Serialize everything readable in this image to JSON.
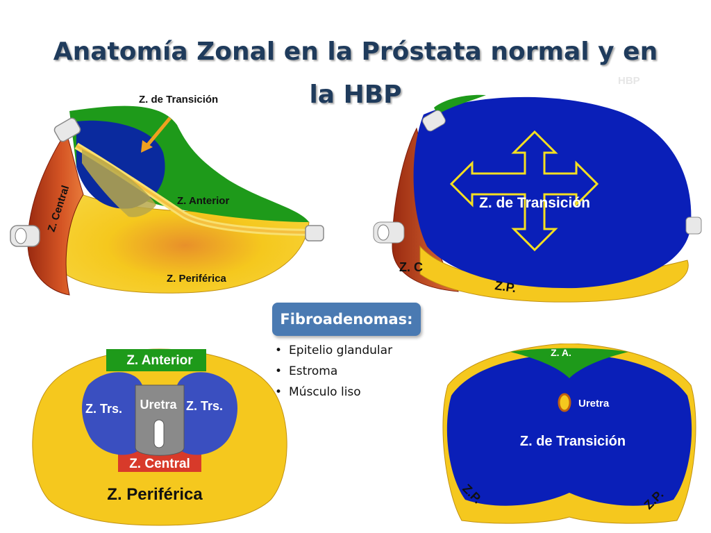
{
  "title": "Anatomía Zonal en la Próstata normal y en la HBP",
  "ghost_text": "HBP",
  "diagram_normal_sagittal": {
    "label_transition": "Z. de Transición",
    "label_anterior": "Z. Anterior",
    "label_central": "Z. Central",
    "label_peripheral": "Z. Periférica"
  },
  "diagram_bph_sagittal": {
    "label_transition": "Z. de Transición",
    "label_central": "Z. C",
    "label_peripheral": "Z.P."
  },
  "diagram_normal_axial": {
    "label_anterior": "Z. Anterior",
    "label_transition_left": "Z. Trs.",
    "label_transition_right": "Z. Trs.",
    "label_urethra": "Uretra",
    "label_central": "Z. Central",
    "label_peripheral": "Z. Periférica"
  },
  "diagram_bph_axial": {
    "label_anterior": "Z. A.",
    "label_urethra": "Uretra",
    "label_transition": "Z. de Transición",
    "label_peripheral_left": "Z.P.",
    "label_peripheral_right": "Z.P."
  },
  "callout": {
    "heading": "Fibroadenomas:",
    "items": [
      "Epitelio glandular",
      "Estroma",
      "Músculo liso"
    ]
  },
  "colors": {
    "title": "#1F3B5C",
    "transition_blue": "#0A1FB8",
    "anterior_green": "#1E9A1A",
    "peripheral_yellow": "#F5C81E",
    "central_red": "#C8401E",
    "callout_blue": "#4A7AB2"
  }
}
